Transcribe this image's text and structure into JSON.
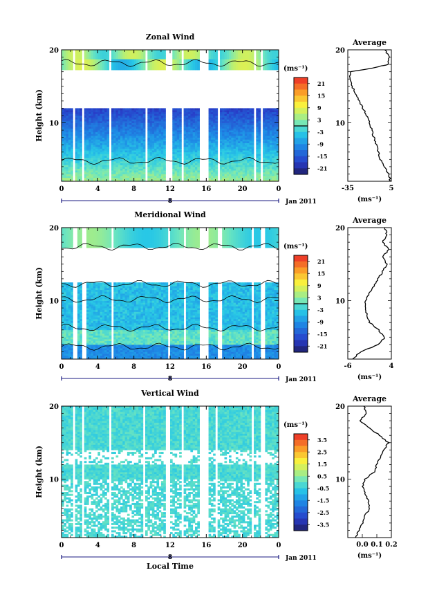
{
  "figure": {
    "date_label": "Jan 2011",
    "xlabel_bottom": "Local Time",
    "day_label": "8",
    "unit_label": "(ms⁻¹)",
    "average_title": "Average"
  },
  "chart_data": [
    {
      "type": "heatmap",
      "title": "Zonal Wind",
      "ylabel": "Height (km)",
      "xlabel": "Local Time",
      "x_ticks": [
        "0",
        "4",
        "8",
        "12",
        "16",
        "20",
        "0"
      ],
      "xlim": [
        0,
        24
      ],
      "ylim": [
        2,
        20
      ],
      "y_ticks": [
        "10",
        "20"
      ],
      "colorbar": {
        "label": "(ms⁻¹)",
        "ticks": [
          "21",
          "15",
          "9",
          "3",
          "-3",
          "-9",
          "-15",
          "-21"
        ],
        "range": [
          -24,
          24
        ],
        "zero_line": 0
      },
      "profile": {
        "title": "Average",
        "xlabel": "(ms⁻¹)",
        "x_ticks": [
          "-35",
          "5"
        ],
        "xlim": [
          -35,
          5
        ],
        "heights": [
          2,
          3,
          4,
          5,
          6,
          7,
          8,
          9,
          10,
          11,
          12,
          13,
          14,
          15,
          16,
          17,
          17.5,
          18,
          19,
          20
        ],
        "values": [
          4,
          3,
          -2,
          -5,
          -7,
          -9,
          -11,
          -13,
          -15,
          -18,
          -21,
          -25,
          -28,
          -31,
          -33,
          -32,
          -12,
          2,
          3,
          -1
        ]
      }
    },
    {
      "type": "heatmap",
      "title": "Meridional Wind",
      "ylabel": "Height (km)",
      "xlabel": "Local Time",
      "x_ticks": [
        "0",
        "4",
        "8",
        "12",
        "16",
        "20",
        "0"
      ],
      "xlim": [
        0,
        24
      ],
      "ylim": [
        2,
        20
      ],
      "y_ticks": [
        "10",
        "20"
      ],
      "colorbar": {
        "label": "(ms⁻¹)",
        "ticks": [
          "21",
          "15",
          "9",
          "3",
          "-3",
          "-9",
          "-15",
          "-21"
        ],
        "range": [
          -24,
          24
        ],
        "zero_line": 0
      },
      "profile": {
        "title": "Average",
        "xlabel": "(ms⁻¹)",
        "x_ticks": [
          "-6",
          "4"
        ],
        "xlim": [
          -6,
          4
        ],
        "heights": [
          2,
          3,
          4,
          5,
          6,
          7,
          8,
          9,
          10,
          11,
          12,
          13,
          14,
          15,
          16,
          17,
          18,
          19,
          20
        ],
        "values": [
          -5,
          -3,
          1,
          2.5,
          1,
          -1,
          -1.5,
          -2,
          -2,
          -1,
          0,
          1,
          2,
          3,
          2,
          3.5,
          2,
          3,
          2.5
        ]
      }
    },
    {
      "type": "heatmap",
      "title": "Vertical Wind",
      "ylabel": "Height (km)",
      "xlabel": "Local Time",
      "x_ticks": [
        "0",
        "4",
        "8",
        "12",
        "16",
        "20",
        "0"
      ],
      "xlim": [
        0,
        24
      ],
      "ylim": [
        2,
        20
      ],
      "y_ticks": [
        "10",
        "20"
      ],
      "colorbar": {
        "label": "(ms⁻¹)",
        "ticks": [
          "3.5",
          "2.5",
          "1.5",
          "0.5",
          "-0.5",
          "-1.5",
          "-2.5",
          "-3.5"
        ],
        "range": [
          -4,
          4
        ],
        "zero_line": null
      },
      "profile": {
        "title": "Average",
        "xlabel": "(ms⁻¹)",
        "x_ticks": [
          "0.0",
          "0.1",
          "0.2"
        ],
        "xlim": [
          -0.1,
          0.2
        ],
        "heights": [
          2,
          3,
          4,
          5,
          6,
          7,
          8,
          9,
          10,
          11,
          12,
          13,
          14,
          15,
          16,
          17,
          18,
          19,
          20
        ],
        "values": [
          -0.05,
          -0.02,
          0.0,
          0.02,
          0.05,
          0.04,
          0.02,
          0.0,
          0.02,
          0.08,
          0.1,
          0.12,
          0.15,
          0.18,
          0.12,
          0.05,
          -0.02,
          0.03,
          0.01
        ]
      }
    }
  ]
}
